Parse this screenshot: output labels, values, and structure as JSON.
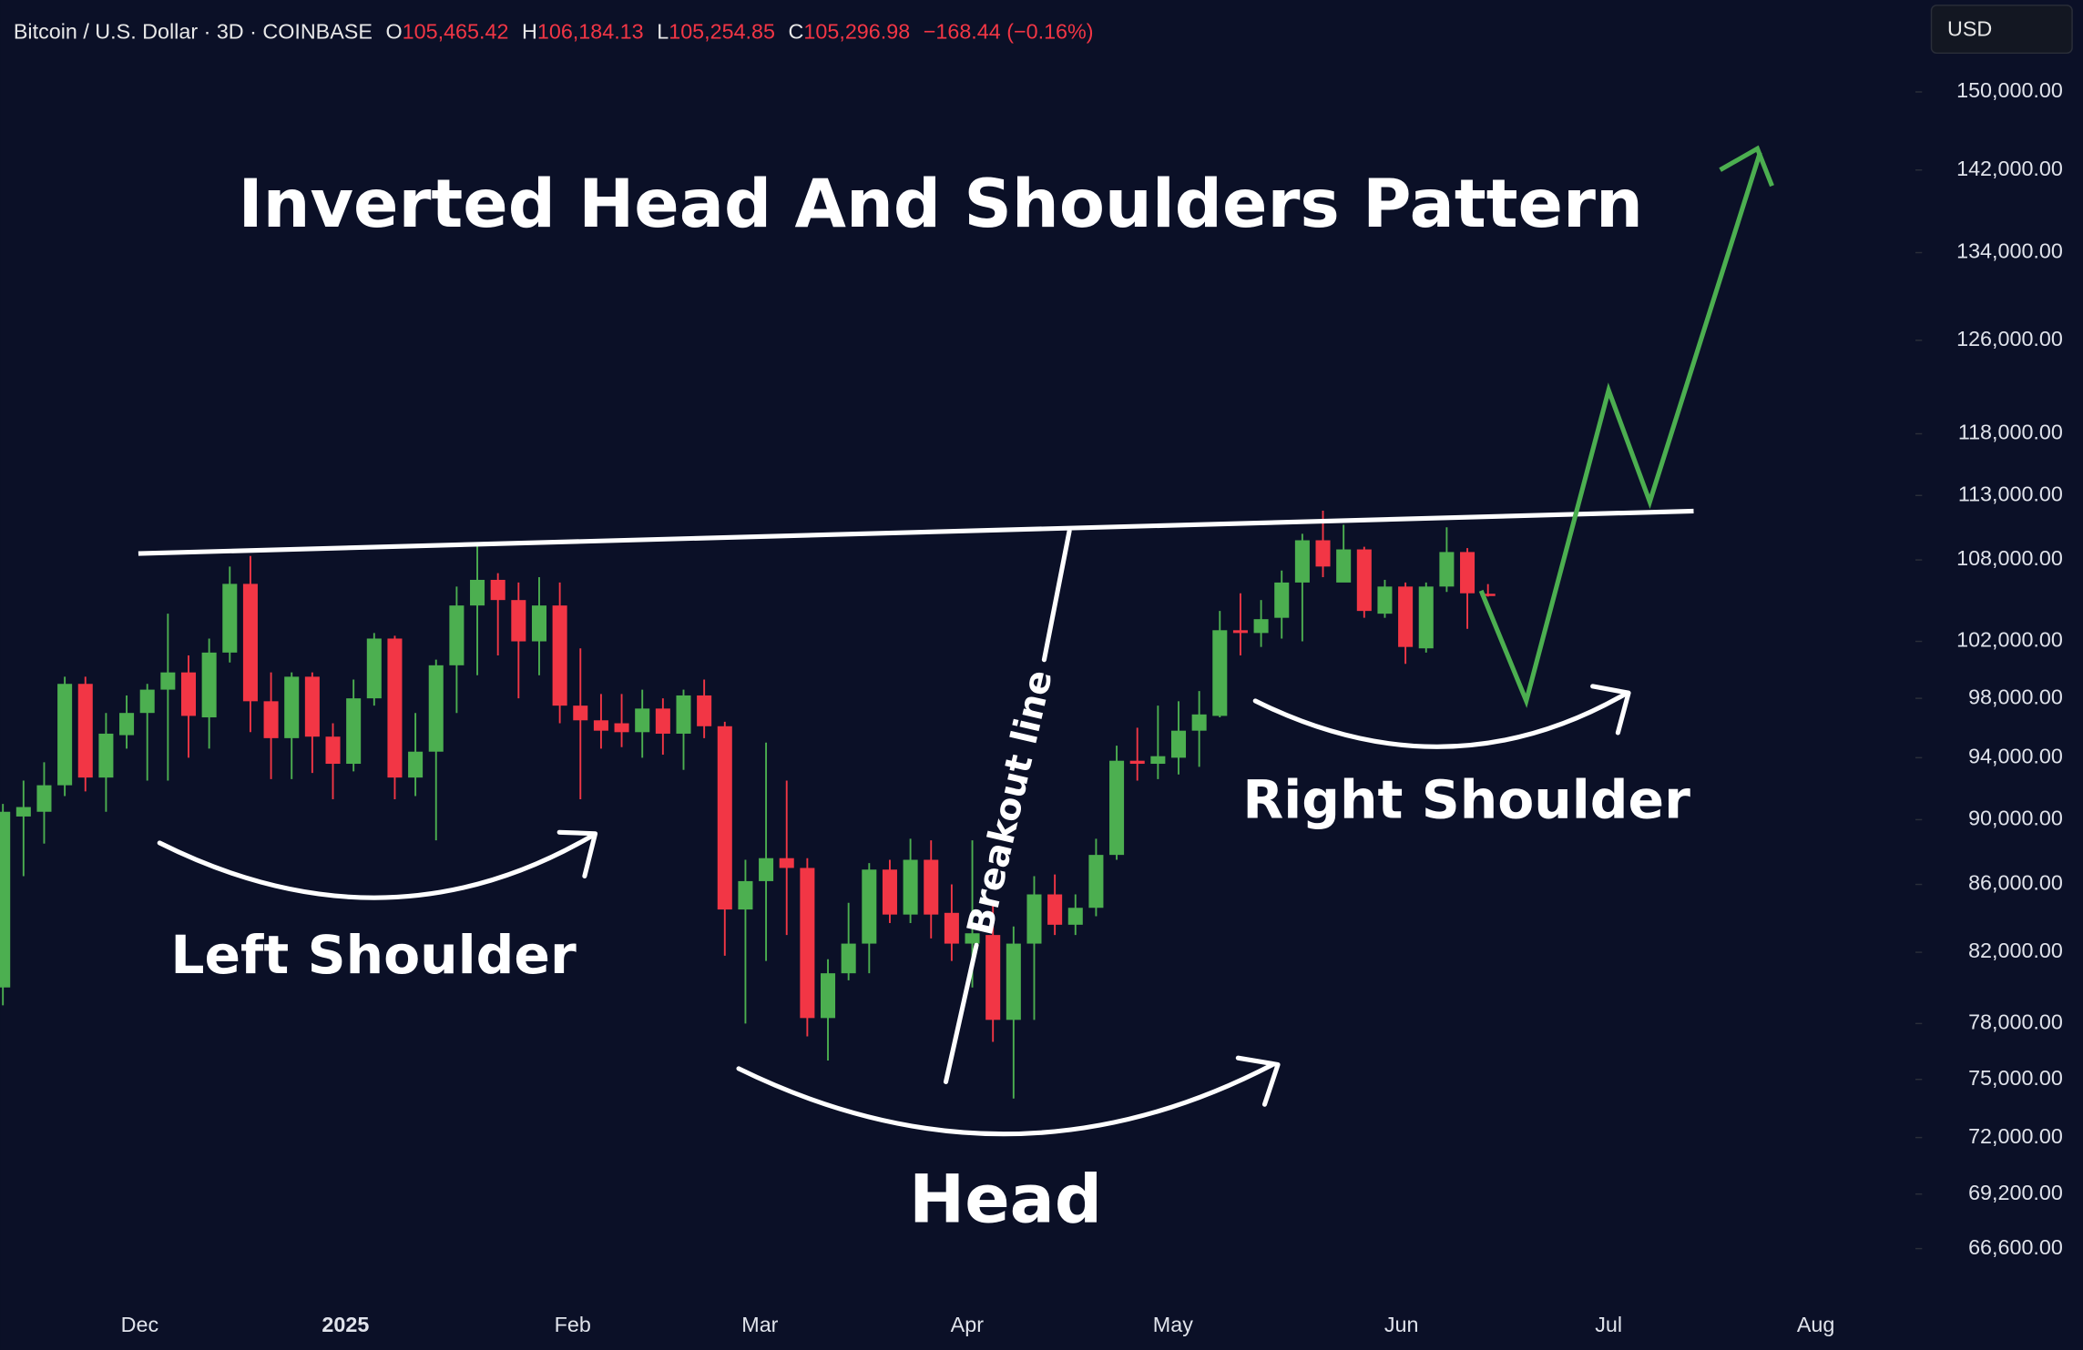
{
  "chart_data": {
    "type": "candlestick",
    "title": "Inverted Head And Shoulders Pattern",
    "header": {
      "symbol": "Bitcoin / U.S. Dollar · 3D · COINBASE",
      "ohlc": [
        {
          "key": "O",
          "value": "105,465.42"
        },
        {
          "key": "H",
          "value": "106,184.13"
        },
        {
          "key": "L",
          "value": "105,254.85"
        },
        {
          "key": "C",
          "value": "105,296.98"
        }
      ],
      "change": "−168.44 (−0.16%)"
    },
    "currency": "USD",
    "annotations": {
      "left_shoulder": "Left Shoulder",
      "head": "Head",
      "right_shoulder": "Right Shoulder",
      "breakout": "Breakout line"
    },
    "x_labels": [
      "Dec",
      "2025",
      "Feb",
      "Mar",
      "Apr",
      "May",
      "Jun",
      "Jul",
      "Aug"
    ],
    "open": [
      80000,
      90200,
      90500,
      92200,
      99000,
      92700,
      95500,
      97000,
      98600,
      99800,
      96700,
      101200,
      106200,
      97800,
      95300,
      99500,
      95400,
      93600,
      98000,
      102200,
      92700,
      94400,
      100300,
      104600,
      106500,
      105000,
      102000,
      104600,
      97500,
      96500,
      96300,
      95700,
      97300,
      95600,
      98200,
      96100,
      84500,
      86200,
      87600,
      87000,
      78300,
      80800,
      82500,
      86900,
      84200,
      87500,
      84300,
      82500,
      83000,
      78200,
      82500,
      85400,
      83600,
      84600,
      87800,
      93800,
      93600,
      94000,
      95800,
      96800,
      102800,
      102600,
      103700,
      106300,
      109500,
      106300,
      108800,
      104000,
      106000,
      101500,
      106000,
      108600,
      105465.42
    ],
    "high": [
      91000,
      92500,
      93700,
      99500,
      99500,
      97000,
      98200,
      99000,
      104000,
      101000,
      102200,
      107500,
      108300,
      99800,
      99800,
      99800,
      96300,
      99300,
      102600,
      102400,
      97000,
      100700,
      106000,
      109300,
      107000,
      106300,
      106700,
      106300,
      101500,
      98300,
      98300,
      98600,
      98000,
      98600,
      99300,
      96400,
      87500,
      95000,
      92500,
      87600,
      81600,
      84900,
      87300,
      87500,
      88800,
      88700,
      86000,
      88700,
      84900,
      83500,
      86500,
      86600,
      85400,
      88800,
      94800,
      96000,
      97500,
      97800,
      98500,
      104200,
      105500,
      105000,
      107200,
      110000,
      111800,
      110700,
      109000,
      106500,
      106300,
      106300,
      110500,
      108900,
      106184.13
    ],
    "low": [
      79000,
      86500,
      88500,
      91500,
      91800,
      90500,
      94600,
      92500,
      92500,
      94000,
      94600,
      100500,
      95700,
      92600,
      92600,
      93000,
      91300,
      93100,
      97500,
      91300,
      91500,
      88700,
      97000,
      99600,
      101000,
      98000,
      99600,
      96300,
      91300,
      94600,
      94700,
      94000,
      94200,
      93200,
      95300,
      81800,
      78000,
      81500,
      83000,
      77300,
      76000,
      80400,
      80800,
      83700,
      83700,
      82800,
      81500,
      80000,
      77000,
      74000,
      78200,
      83000,
      83000,
      84100,
      87500,
      92500,
      92600,
      92900,
      93400,
      96700,
      101000,
      101600,
      102200,
      102000,
      106700,
      106500,
      103700,
      103700,
      100400,
      101200,
      105600,
      102900,
      105254.85
    ],
    "close": [
      90500,
      90800,
      92200,
      99000,
      92700,
      95600,
      97000,
      98600,
      99800,
      96800,
      101200,
      106200,
      97800,
      95300,
      99500,
      95400,
      93600,
      98000,
      102200,
      92700,
      94400,
      100300,
      104600,
      106500,
      105000,
      102000,
      104600,
      97500,
      96500,
      95800,
      95700,
      97300,
      95600,
      98200,
      96100,
      84500,
      86200,
      87600,
      87000,
      78300,
      80800,
      82500,
      86900,
      84200,
      87500,
      84200,
      82500,
      83100,
      78200,
      82500,
      85400,
      83600,
      84600,
      87800,
      93800,
      93600,
      94100,
      95800,
      96900,
      102800,
      102600,
      103600,
      106300,
      109500,
      107500,
      108800,
      104200,
      106000,
      101600,
      106000,
      108600,
      105500,
      105296.98
    ],
    "up_color": "#4caf50",
    "down_color": "#f23645",
    "log_scale": true,
    "ylim": [
      64500,
      160000
    ],
    "yticks": [
      {
        "value": 150000,
        "label": "150,000.00"
      },
      {
        "value": 142000,
        "label": "142,000.00"
      },
      {
        "value": 134000,
        "label": "134,000.00"
      },
      {
        "value": 126000,
        "label": "126,000.00"
      },
      {
        "value": 118000,
        "label": "118,000.00"
      },
      {
        "value": 113000,
        "label": "113,000.00"
      },
      {
        "value": 108000,
        "label": "108,000.00"
      },
      {
        "value": 102000,
        "label": "102,000.00"
      },
      {
        "value": 98000,
        "label": "98,000.00"
      },
      {
        "value": 94000,
        "label": "94,000.00"
      },
      {
        "value": 90000,
        "label": "90,000.00"
      },
      {
        "value": 86000,
        "label": "86,000.00"
      },
      {
        "value": 82000,
        "label": "82,000.00"
      },
      {
        "value": 78000,
        "label": "78,000.00"
      },
      {
        "value": 75000,
        "label": "75,000.00"
      },
      {
        "value": 72000,
        "label": "72,000.00"
      },
      {
        "value": 69200,
        "label": "69,200.00"
      },
      {
        "value": 66600,
        "label": "66,600.00"
      }
    ]
  }
}
